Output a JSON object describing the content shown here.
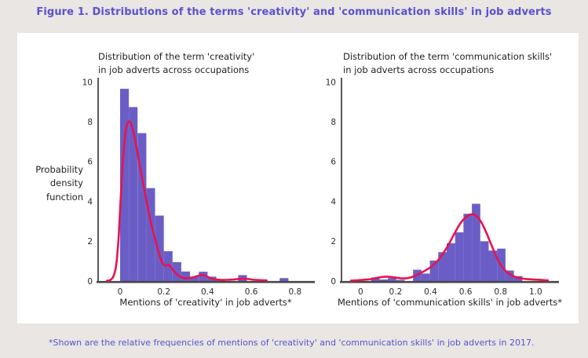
{
  "page": {
    "title": "Figure 1. Distributions of the terms 'creativity' and 'communication skills' in job adverts",
    "footnote": "*Shown are the relative frequencies of mentions of 'creativity' and 'communication skills' in job adverts in 2017."
  },
  "ylabel": "Probability\ndensity\nfunction",
  "colors": {
    "accent_purple": "#5951ce",
    "bar_fill": "#6a5ec6",
    "kde_line": "#e8134e",
    "axis": "#47474a",
    "text": "#2b2b2b",
    "page_bg": "#e9e6e3",
    "panel_bg": "#ffffff"
  },
  "chart_data": [
    {
      "id": "creativity",
      "type": "histogram_kde",
      "title": "Distribution of the term 'creativity'\nin job adverts across occupations",
      "xlabel": "Mentions of 'creativity' in job adverts*",
      "ylabel": "Probability density function",
      "xlim": [
        -0.1,
        0.89
      ],
      "ylim": [
        0,
        10
      ],
      "yticks": [
        0,
        2,
        4,
        6,
        8,
        10
      ],
      "ytick_labels": [
        "0",
        "2",
        "4",
        "6",
        "8",
        "10"
      ],
      "xticks": [
        0,
        0.2,
        0.4,
        0.6,
        0.8
      ],
      "xtick_labels": [
        "0",
        "0.2",
        "0.4",
        "0.6",
        "0.8"
      ],
      "grid": false,
      "bin_width": 0.04,
      "bars": [
        [
          0.0,
          9.66
        ],
        [
          0.04,
          8.74
        ],
        [
          0.08,
          7.43
        ],
        [
          0.12,
          4.67
        ],
        [
          0.16,
          3.29
        ],
        [
          0.2,
          1.5
        ],
        [
          0.24,
          0.95
        ],
        [
          0.28,
          0.48
        ],
        [
          0.32,
          0.22
        ],
        [
          0.36,
          0.47
        ],
        [
          0.4,
          0.22
        ],
        [
          0.44,
          0.08
        ],
        [
          0.54,
          0.3
        ],
        [
          0.73,
          0.15
        ]
      ],
      "kde": [
        [
          -0.06,
          0.02
        ],
        [
          -0.045,
          0.05
        ],
        [
          -0.03,
          0.25
        ],
        [
          -0.018,
          0.8
        ],
        [
          -0.008,
          2.0
        ],
        [
          0.0,
          3.6
        ],
        [
          0.01,
          5.6
        ],
        [
          0.02,
          7.0
        ],
        [
          0.03,
          7.8
        ],
        [
          0.042,
          8.02
        ],
        [
          0.055,
          7.75
        ],
        [
          0.07,
          7.0
        ],
        [
          0.085,
          6.1
        ],
        [
          0.1,
          5.2
        ],
        [
          0.115,
          4.35
        ],
        [
          0.13,
          3.5
        ],
        [
          0.145,
          2.75
        ],
        [
          0.16,
          2.1
        ],
        [
          0.175,
          1.5
        ],
        [
          0.19,
          1.0
        ],
        [
          0.205,
          0.78
        ],
        [
          0.218,
          0.82
        ],
        [
          0.232,
          0.72
        ],
        [
          0.25,
          0.45
        ],
        [
          0.27,
          0.25
        ],
        [
          0.29,
          0.15
        ],
        [
          0.31,
          0.14
        ],
        [
          0.33,
          0.18
        ],
        [
          0.35,
          0.24
        ],
        [
          0.37,
          0.3
        ],
        [
          0.39,
          0.27
        ],
        [
          0.41,
          0.16
        ],
        [
          0.43,
          0.09
        ],
        [
          0.46,
          0.06
        ],
        [
          0.49,
          0.06
        ],
        [
          0.52,
          0.08
        ],
        [
          0.55,
          0.11
        ],
        [
          0.575,
          0.12
        ],
        [
          0.6,
          0.08
        ],
        [
          0.63,
          0.05
        ],
        [
          0.655,
          0.04
        ],
        [
          0.67,
          0.03
        ]
      ]
    },
    {
      "id": "communication-skills",
      "type": "histogram_kde",
      "title": "Distribution of the term 'communication skills'\nin job adverts across occupations",
      "xlabel": "Mentions of 'communication skills' in job adverts*",
      "ylabel": "Probability density function",
      "xlim": [
        -0.11,
        1.13
      ],
      "ylim": [
        0,
        10
      ],
      "yticks": [
        0,
        2,
        4,
        6,
        8,
        10
      ],
      "ytick_labels": [
        "0",
        "2",
        "4",
        "6",
        "8",
        "10"
      ],
      "xticks": [
        0,
        0.2,
        0.4,
        0.6,
        0.8,
        1.0
      ],
      "xtick_labels": [
        "0",
        "0.2",
        "0.4",
        "0.6",
        "0.8",
        "1.0"
      ],
      "grid": false,
      "bin_width": 0.048,
      "bars": [
        [
          0.06,
          0.18
        ],
        [
          0.108,
          0.08
        ],
        [
          0.156,
          0.15
        ],
        [
          0.204,
          0.06
        ],
        [
          0.3,
          0.57
        ],
        [
          0.348,
          0.38
        ],
        [
          0.396,
          1.03
        ],
        [
          0.444,
          1.45
        ],
        [
          0.492,
          1.9
        ],
        [
          0.54,
          2.45
        ],
        [
          0.588,
          3.38
        ],
        [
          0.636,
          3.88
        ],
        [
          0.684,
          2.0
        ],
        [
          0.732,
          1.53
        ],
        [
          0.78,
          1.63
        ],
        [
          0.828,
          0.53
        ],
        [
          0.876,
          0.25
        ]
      ],
      "kde": [
        [
          -0.055,
          0.02
        ],
        [
          -0.03,
          0.03
        ],
        [
          0.0,
          0.05
        ],
        [
          0.03,
          0.07
        ],
        [
          0.06,
          0.1
        ],
        [
          0.09,
          0.15
        ],
        [
          0.12,
          0.2
        ],
        [
          0.15,
          0.22
        ],
        [
          0.18,
          0.2
        ],
        [
          0.21,
          0.16
        ],
        [
          0.24,
          0.13
        ],
        [
          0.27,
          0.15
        ],
        [
          0.3,
          0.22
        ],
        [
          0.33,
          0.34
        ],
        [
          0.36,
          0.48
        ],
        [
          0.39,
          0.64
        ],
        [
          0.42,
          0.84
        ],
        [
          0.45,
          1.12
        ],
        [
          0.48,
          1.5
        ],
        [
          0.51,
          1.95
        ],
        [
          0.54,
          2.45
        ],
        [
          0.57,
          2.9
        ],
        [
          0.6,
          3.2
        ],
        [
          0.63,
          3.35
        ],
        [
          0.66,
          3.28
        ],
        [
          0.69,
          2.95
        ],
        [
          0.72,
          2.4
        ],
        [
          0.75,
          1.75
        ],
        [
          0.78,
          1.15
        ],
        [
          0.81,
          0.7
        ],
        [
          0.84,
          0.42
        ],
        [
          0.87,
          0.26
        ],
        [
          0.9,
          0.17
        ],
        [
          0.93,
          0.12
        ],
        [
          0.96,
          0.09
        ],
        [
          1.0,
          0.07
        ],
        [
          1.04,
          0.05
        ],
        [
          1.07,
          0.03
        ]
      ]
    }
  ]
}
